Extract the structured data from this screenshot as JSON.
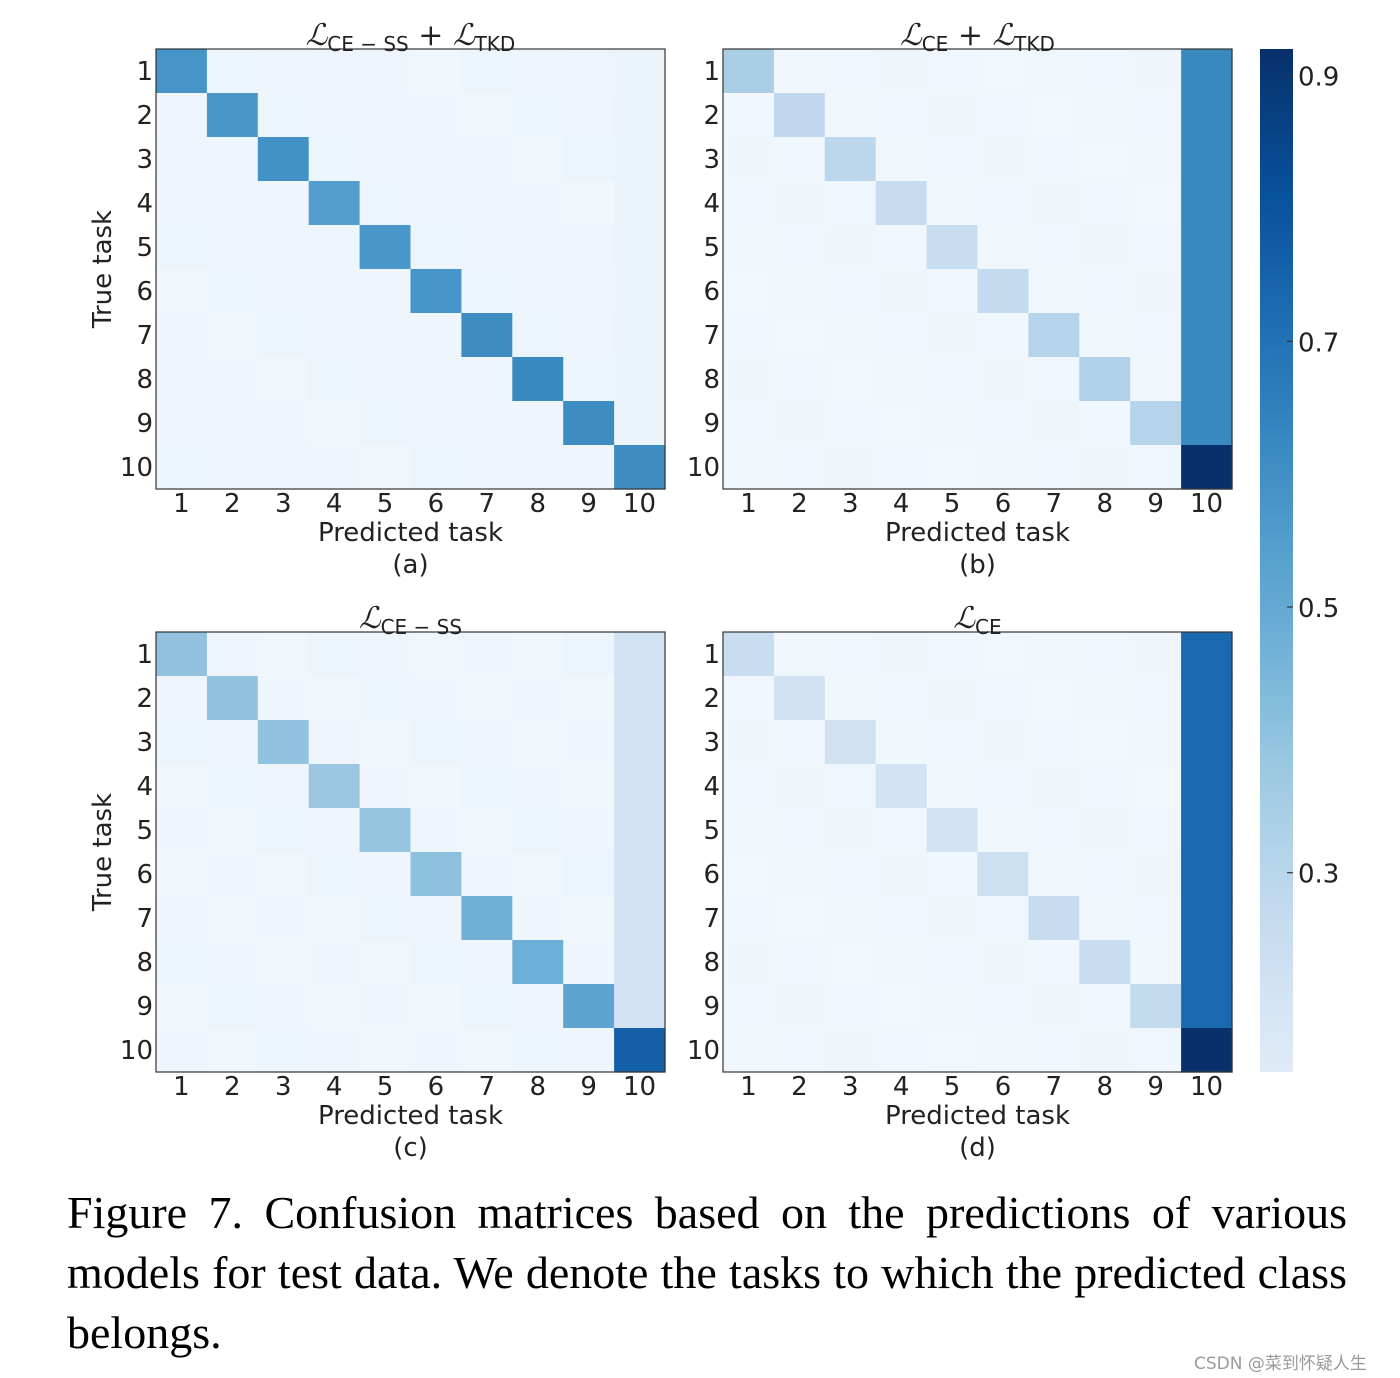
{
  "chart_data": [
    {
      "type": "heatmap",
      "panel_label": "(a)",
      "title_parts": {
        "symbol": "ℒ",
        "subscript_1": "CE − SS",
        "operator": " + ",
        "subscript_2": "TKD"
      },
      "xlabel": "Predicted task",
      "ylabel": "True task",
      "x_ticks": [
        "1",
        "2",
        "3",
        "4",
        "5",
        "6",
        "7",
        "8",
        "9",
        "10"
      ],
      "y_ticks": [
        "1",
        "2",
        "3",
        "4",
        "5",
        "6",
        "7",
        "8",
        "9",
        "10"
      ],
      "diagonal": [
        0.58,
        0.57,
        0.59,
        0.55,
        0.57,
        0.58,
        0.61,
        0.62,
        0.61,
        0.61
      ],
      "off_diagonal": 0.045,
      "last_column": 0.06
    },
    {
      "type": "heatmap",
      "panel_label": "(b)",
      "title_parts": {
        "symbol": "ℒ",
        "subscript_1": "CE",
        "operator": " + ",
        "subscript_2": "TKD"
      },
      "xlabel": "Predicted task",
      "ylabel": "",
      "x_ticks": [
        "1",
        "2",
        "3",
        "4",
        "5",
        "6",
        "7",
        "8",
        "9",
        "10"
      ],
      "y_ticks": [
        "1",
        "2",
        "3",
        "4",
        "5",
        "6",
        "7",
        "8",
        "9",
        "10"
      ],
      "diagonal": [
        0.34,
        0.28,
        0.29,
        0.26,
        0.25,
        0.27,
        0.31,
        0.32,
        0.31,
        0.94
      ],
      "off_diagonal": 0.03,
      "last_column": 0.62
    },
    {
      "type": "heatmap",
      "panel_label": "(c)",
      "title_parts": {
        "symbol": "ℒ",
        "subscript_1": "CE − SS",
        "operator": "",
        "subscript_2": ""
      },
      "xlabel": "Predicted task",
      "ylabel": "True task",
      "x_ticks": [
        "1",
        "2",
        "3",
        "4",
        "5",
        "6",
        "7",
        "8",
        "9",
        "10"
      ],
      "y_ticks": [
        "1",
        "2",
        "3",
        "4",
        "5",
        "6",
        "7",
        "8",
        "9",
        "10"
      ],
      "diagonal": [
        0.4,
        0.4,
        0.4,
        0.38,
        0.39,
        0.41,
        0.47,
        0.48,
        0.52,
        0.76
      ],
      "off_diagonal": 0.04,
      "last_column": 0.21
    },
    {
      "type": "heatmap",
      "panel_label": "(d)",
      "title_parts": {
        "symbol": "ℒ",
        "subscript_1": "CE",
        "operator": "",
        "subscript_2": ""
      },
      "xlabel": "Predicted task",
      "ylabel": "",
      "x_ticks": [
        "1",
        "2",
        "3",
        "4",
        "5",
        "6",
        "7",
        "8",
        "9",
        "10"
      ],
      "y_ticks": [
        "1",
        "2",
        "3",
        "4",
        "5",
        "6",
        "7",
        "8",
        "9",
        "10"
      ],
      "diagonal": [
        0.25,
        0.22,
        0.22,
        0.21,
        0.21,
        0.23,
        0.26,
        0.25,
        0.27,
        0.94
      ],
      "off_diagonal": 0.03,
      "last_column": 0.73
    }
  ],
  "colorbar": {
    "colormap": "Blues",
    "range": [
      0.15,
      0.92
    ],
    "ticks": [
      0.3,
      0.5,
      0.7,
      0.9
    ],
    "tick_labels": [
      "0.3",
      "0.5",
      "0.7",
      "0.9"
    ]
  },
  "colors": {
    "blues_light": "#f7fbff",
    "blues_dark": "#08306b",
    "axis": "#333333"
  },
  "caption": "Figure 7. Confusion matrices based on the predictions of various models for test data.  We denote the tasks to which the predicted class belongs.",
  "watermark": "CSDN @菜到怀疑人生"
}
